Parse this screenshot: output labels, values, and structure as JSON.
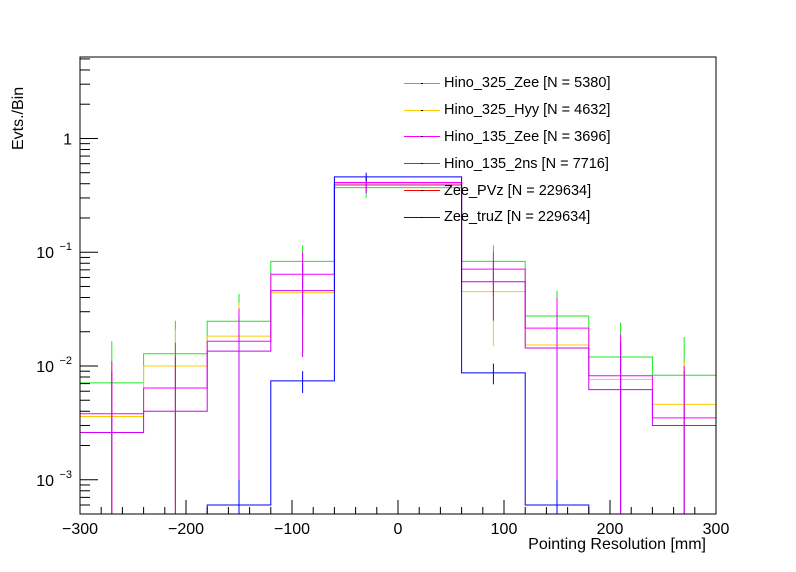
{
  "chart_data": {
    "type": "step-histogram",
    "title": "",
    "xlabel": "Pointing Resolution [mm]",
    "ylabel": "Evts./Bin",
    "xlim": [
      -300,
      300
    ],
    "ylim": [
      0.0005,
      5.2
    ],
    "yscale": "log",
    "grid": false,
    "legend_position": "top-right",
    "bin_edges": [
      -300,
      -240,
      -180,
      -120,
      -60,
      0,
      60,
      120,
      180,
      240,
      300
    ],
    "x_ticks": [
      -300,
      -200,
      -100,
      0,
      100,
      200,
      300
    ],
    "x_tick_labels": [
      "−300",
      "−200",
      "−100",
      "0",
      "100",
      "200",
      "300"
    ],
    "y_ticks": [
      {
        "value": 0.001,
        "base": "10",
        "exp": "−3"
      },
      {
        "value": 0.01,
        "base": "10",
        "exp": "−2"
      },
      {
        "value": 0.1,
        "base": "10",
        "exp": "−1"
      },
      {
        "value": 1,
        "base": "1",
        "exp": ""
      }
    ],
    "series": [
      {
        "name": "Hino_325_Zee [N = 5380]",
        "color": "#1ee61e",
        "values": [
          0.0071,
          0.0128,
          0.0247,
          0.083,
          0.37,
          0.37,
          0.083,
          0.0275,
          0.012,
          0.0083
        ],
        "err_hi": [
          0.0165,
          0.025,
          0.043,
          0.115,
          0.44,
          null,
          0.115,
          0.046,
          0.024,
          0.018
        ]
      },
      {
        "name": "Hino_325_Hyy [N = 4632]",
        "color": "#ffcc00",
        "values": [
          0.0036,
          0.01,
          0.0183,
          0.044,
          0.4,
          0.4,
          0.045,
          0.0153,
          0.0076,
          0.0046
        ],
        "err_hi": [
          0.01,
          0.021,
          0.036,
          0.075,
          0.46,
          null,
          0.075,
          0.03,
          0.016,
          0.011
        ]
      },
      {
        "name": "Hino_135_Zee [N = 3696]",
        "color": "#ff00ff",
        "values": [
          0.0038,
          0.0064,
          0.0165,
          0.064,
          0.41,
          0.41,
          0.071,
          0.0215,
          0.0082,
          0.0035
        ],
        "err_hi": [
          0.011,
          0.016,
          0.032,
          0.1,
          0.47,
          null,
          0.1,
          0.04,
          0.019,
          0.01
        ]
      },
      {
        "name": "Hino_135_2ns [N = 7716]",
        "color": "#cc00ff",
        "values": [
          0.0026,
          0.004,
          0.0135,
          0.046,
          0.39,
          0.39,
          0.055,
          0.0144,
          0.0062,
          0.003
        ],
        "err_hi": [
          0.009,
          0.012,
          0.028,
          0.08,
          0.45,
          null,
          0.085,
          0.03,
          0.016,
          0.009
        ]
      },
      {
        "name": "Zee_PVz [N = 229634]",
        "color": "#ff0000",
        "values": [
          0,
          0,
          0,
          0,
          0,
          0,
          0,
          0,
          0,
          0
        ],
        "err_hi": [
          null,
          null,
          null,
          null,
          null,
          null,
          null,
          null,
          null,
          null
        ]
      },
      {
        "name": "Zee_truZ [N = 229634]",
        "color": "#0000ff",
        "values": [
          0,
          0,
          0.0006,
          0.0074,
          0.46,
          0.46,
          0.0087,
          0.0006,
          0,
          0
        ],
        "err_hi": [
          null,
          null,
          0.001,
          0.009,
          0.5,
          null,
          0.0105,
          0.001,
          null,
          null
        ]
      }
    ]
  }
}
